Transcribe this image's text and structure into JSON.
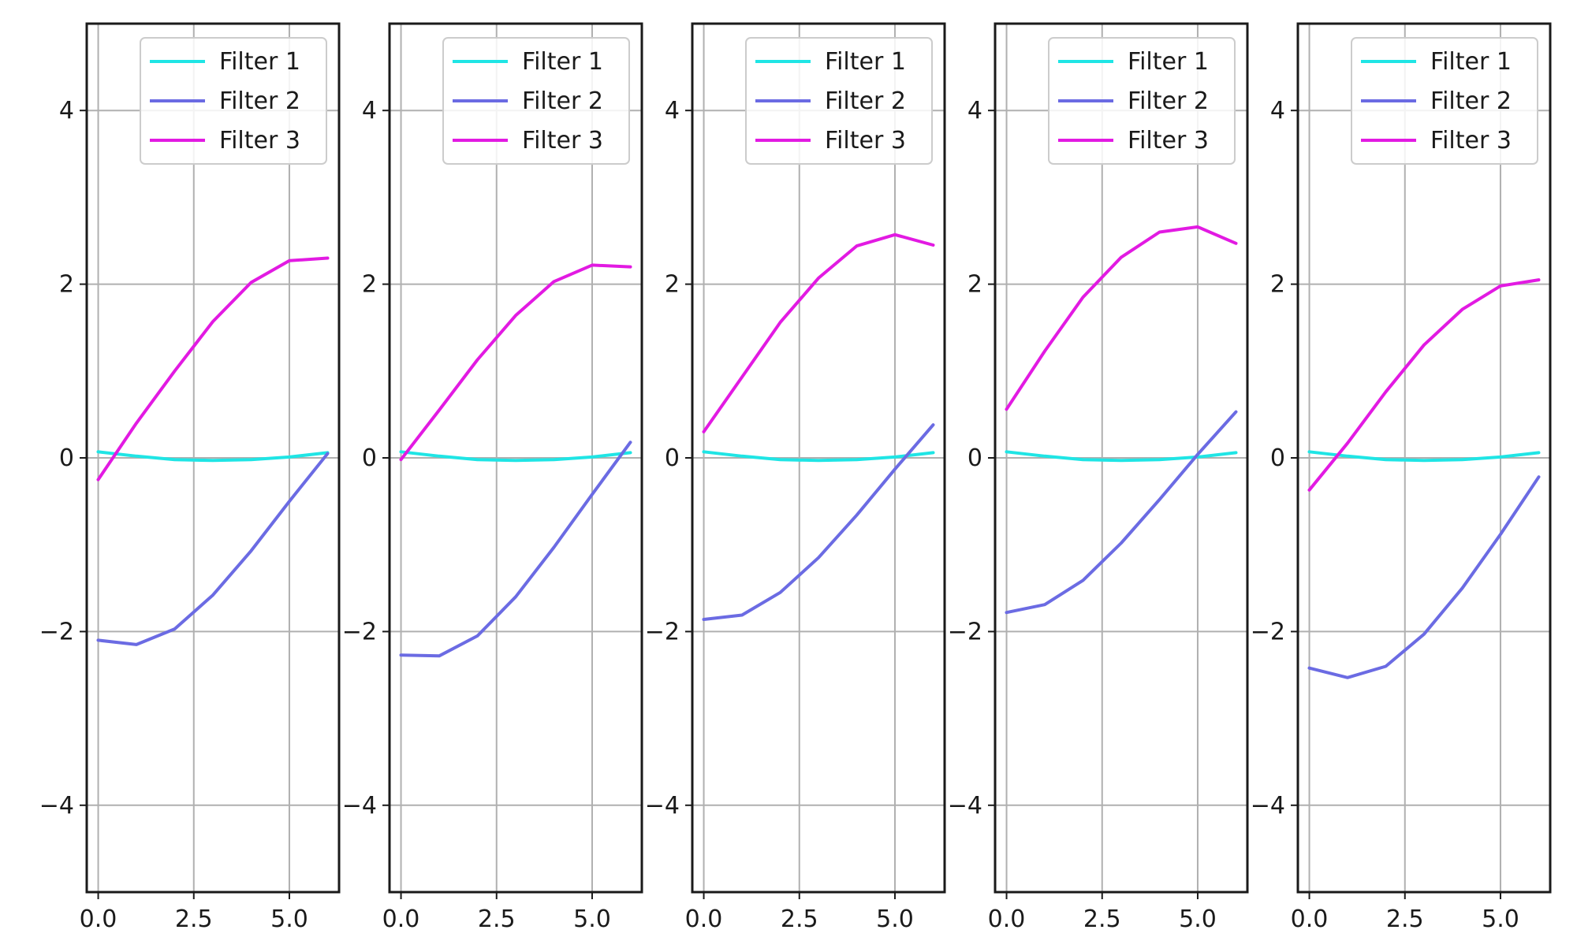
{
  "chart_data": [
    {
      "type": "line",
      "x": [
        0,
        1,
        2,
        3,
        4,
        5,
        6
      ],
      "xlim": [
        -0.3,
        6.3
      ],
      "ylim": [
        -5,
        5
      ],
      "xticks": [
        "0.0",
        "2.5",
        "5.0"
      ],
      "yticks": [
        "4",
        "2",
        "0",
        "−2",
        "−4"
      ],
      "grid": true,
      "legend_position": "top-right",
      "series": [
        {
          "name": "Filter 1",
          "color": "#1fe5e5",
          "values": [
            0.07,
            0.02,
            -0.02,
            -0.03,
            -0.02,
            0.01,
            0.06
          ]
        },
        {
          "name": "Filter 2",
          "color": "#6b6be3",
          "values": [
            -2.1,
            -2.15,
            -1.97,
            -1.58,
            -1.07,
            -0.5,
            0.05
          ]
        },
        {
          "name": "Filter 3",
          "color": "#e21ae2",
          "values": [
            -0.25,
            0.4,
            1.0,
            1.57,
            2.02,
            2.27,
            2.3
          ]
        }
      ]
    },
    {
      "type": "line",
      "x": [
        0,
        1,
        2,
        3,
        4,
        5,
        6
      ],
      "xlim": [
        -0.3,
        6.3
      ],
      "ylim": [
        -5,
        5
      ],
      "xticks": [
        "0.0",
        "2.5",
        "5.0"
      ],
      "yticks": [
        "4",
        "2",
        "0",
        "−2",
        "−4"
      ],
      "grid": true,
      "legend_position": "top-right",
      "series": [
        {
          "name": "Filter 1",
          "color": "#1fe5e5",
          "values": [
            0.07,
            0.02,
            -0.02,
            -0.03,
            -0.02,
            0.01,
            0.06
          ]
        },
        {
          "name": "Filter 2",
          "color": "#6b6be3",
          "values": [
            -2.27,
            -2.28,
            -2.05,
            -1.6,
            -1.03,
            -0.42,
            0.18
          ]
        },
        {
          "name": "Filter 3",
          "color": "#e21ae2",
          "values": [
            -0.02,
            0.55,
            1.13,
            1.64,
            2.03,
            2.22,
            2.2
          ]
        }
      ]
    },
    {
      "type": "line",
      "x": [
        0,
        1,
        2,
        3,
        4,
        5,
        6
      ],
      "xlim": [
        -0.3,
        6.3
      ],
      "ylim": [
        -5,
        5
      ],
      "xticks": [
        "0.0",
        "2.5",
        "5.0"
      ],
      "yticks": [
        "4",
        "2",
        "0",
        "−2",
        "−4"
      ],
      "grid": true,
      "legend_position": "top-right",
      "series": [
        {
          "name": "Filter 1",
          "color": "#1fe5e5",
          "values": [
            0.07,
            0.02,
            -0.02,
            -0.03,
            -0.02,
            0.01,
            0.06
          ]
        },
        {
          "name": "Filter 2",
          "color": "#6b6be3",
          "values": [
            -1.86,
            -1.81,
            -1.55,
            -1.15,
            -0.66,
            -0.13,
            0.38
          ]
        },
        {
          "name": "Filter 3",
          "color": "#e21ae2",
          "values": [
            0.3,
            0.93,
            1.56,
            2.07,
            2.44,
            2.57,
            2.45
          ]
        }
      ]
    },
    {
      "type": "line",
      "x": [
        0,
        1,
        2,
        3,
        4,
        5,
        6
      ],
      "xlim": [
        -0.3,
        6.3
      ],
      "ylim": [
        -5,
        5
      ],
      "xticks": [
        "0.0",
        "2.5",
        "5.0"
      ],
      "yticks": [
        "4",
        "2",
        "0",
        "−2",
        "−4"
      ],
      "grid": true,
      "legend_position": "top-right",
      "series": [
        {
          "name": "Filter 1",
          "color": "#1fe5e5",
          "values": [
            0.07,
            0.02,
            -0.02,
            -0.03,
            -0.02,
            0.01,
            0.06
          ]
        },
        {
          "name": "Filter 2",
          "color": "#6b6be3",
          "values": [
            -1.78,
            -1.69,
            -1.41,
            -0.98,
            -0.48,
            0.04,
            0.53
          ]
        },
        {
          "name": "Filter 3",
          "color": "#e21ae2",
          "values": [
            0.56,
            1.23,
            1.85,
            2.31,
            2.6,
            2.66,
            2.47
          ]
        }
      ]
    },
    {
      "type": "line",
      "x": [
        0,
        1,
        2,
        3,
        4,
        5,
        6
      ],
      "xlim": [
        -0.3,
        6.3
      ],
      "ylim": [
        -5,
        5
      ],
      "xticks": [
        "0.0",
        "2.5",
        "5.0"
      ],
      "yticks": [
        "4",
        "2",
        "0",
        "−2",
        "−4"
      ],
      "grid": true,
      "legend_position": "top-right",
      "series": [
        {
          "name": "Filter 1",
          "color": "#1fe5e5",
          "values": [
            0.07,
            0.02,
            -0.02,
            -0.03,
            -0.02,
            0.01,
            0.06
          ]
        },
        {
          "name": "Filter 2",
          "color": "#6b6be3",
          "values": [
            -2.42,
            -2.53,
            -2.4,
            -2.03,
            -1.5,
            -0.88,
            -0.22
          ]
        },
        {
          "name": "Filter 3",
          "color": "#e21ae2",
          "values": [
            -0.37,
            0.17,
            0.76,
            1.3,
            1.71,
            1.98,
            2.05
          ]
        }
      ]
    }
  ]
}
